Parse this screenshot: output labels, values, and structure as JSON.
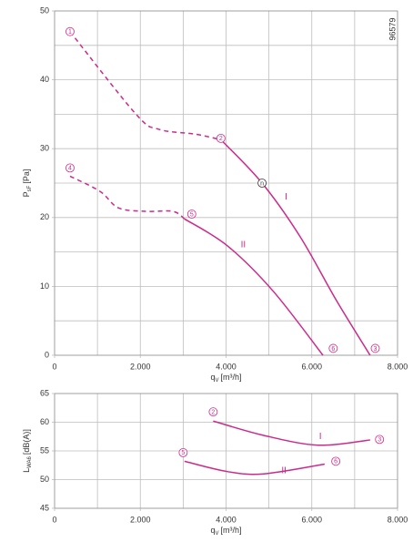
{
  "id_code": "96579",
  "chart_data": [
    {
      "type": "line",
      "x_label": {
        "main": "q",
        "sub": "V",
        "unit": "[m³/h]"
      },
      "y_label": {
        "main": "P",
        "sub": "sF",
        "unit": "[Pa]"
      },
      "xlim": [
        0,
        8000
      ],
      "xticks": [
        0,
        {
          "value": 2000,
          "label": "2.000"
        },
        {
          "value": 4000,
          "label": "4.000"
        },
        {
          "value": 6000,
          "label": "6.000"
        },
        {
          "value": 8000,
          "label": "8.000"
        }
      ],
      "xgrid": [
        1000,
        2000,
        3000,
        4000,
        5000,
        6000,
        7000
      ],
      "ylim": [
        0,
        50
      ],
      "yticks": [
        0,
        10,
        20,
        30,
        40,
        50
      ],
      "ygrid": [
        5,
        10,
        15,
        20,
        25,
        30,
        35,
        40,
        45
      ],
      "series": [
        {
          "color": "#cc2a8a",
          "dashed": true,
          "x": [
            360,
            1900,
            2440,
            3290,
            3880
          ],
          "values": [
            47,
            35,
            32.8,
            32.1,
            31.3
          ]
        },
        {
          "color": "#cc2a8a",
          "dashed": false,
          "x": [
            3880,
            4840,
            5730,
            6580,
            7360
          ],
          "values": [
            31.3,
            25,
            17.2,
            7.9,
            0
          ]
        },
        {
          "color": "#cc2a8a",
          "dashed": true,
          "x": [
            360,
            1060,
            1490,
            2120,
            2760,
            3030
          ],
          "values": [
            26,
            23.8,
            21.4,
            20.9,
            20.9,
            19.8
          ]
        },
        {
          "color": "#cc2a8a",
          "dashed": false,
          "x": [
            3030,
            4030,
            5100,
            6260
          ],
          "values": [
            19.8,
            15.9,
            9.3,
            0
          ]
        }
      ],
      "markers": [
        {
          "label": "1",
          "x": 360,
          "y": 47
        },
        {
          "label": "2",
          "x": 3880,
          "y": 31.5
        },
        {
          "label": "4",
          "x": 360,
          "y": 27.2
        },
        {
          "label": "5",
          "x": 3200,
          "y": 20.5
        },
        {
          "label": "n",
          "x": 4840,
          "y": 25
        },
        {
          "label": "6",
          "x": 6500,
          "y": 1
        },
        {
          "label": "3",
          "x": 7480,
          "y": 1
        }
      ],
      "curve_labels": [
        {
          "label": "I",
          "x": 5400,
          "y": 23
        },
        {
          "label": "II",
          "x": 4400,
          "y": 16
        }
      ]
    },
    {
      "type": "line",
      "x_label": {
        "main": "q",
        "sub": "V",
        "unit": "[m³/h]"
      },
      "y_label": {
        "main": "L",
        "sub": "WA6",
        "unit": "[dB(A)]"
      },
      "xlim": [
        0,
        8000
      ],
      "xticks": [
        0,
        {
          "value": 2000,
          "label": "2.000"
        },
        {
          "value": 4000,
          "label": "4.000"
        },
        {
          "value": 6000,
          "label": "6.000"
        },
        {
          "value": 8000,
          "label": "8.000"
        }
      ],
      "xgrid": [
        1000,
        2000,
        3000,
        4000,
        5000,
        6000,
        7000
      ],
      "ylim": [
        45,
        65
      ],
      "yticks": [
        45,
        50,
        55,
        60,
        65
      ],
      "ygrid": [
        50,
        55,
        60
      ],
      "series": [
        {
          "color": "#cc2a8a",
          "dashed": false,
          "x": [
            3700,
            4880,
            6150,
            7360
          ],
          "values": [
            60.2,
            57.7,
            56,
            56.9
          ]
        },
        {
          "color": "#cc2a8a",
          "dashed": false,
          "x": [
            3030,
            4030,
            4880,
            6300
          ],
          "values": [
            53.2,
            51.4,
            51,
            52.7
          ]
        }
      ],
      "markers": [
        {
          "label": "2",
          "x": 3700,
          "y": 61.8
        },
        {
          "label": "3",
          "x": 7580,
          "y": 57
        },
        {
          "label": "5",
          "x": 3000,
          "y": 54.7
        },
        {
          "label": "6",
          "x": 6560,
          "y": 53.2
        }
      ],
      "curve_labels": [
        {
          "label": "I",
          "x": 6200,
          "y": 57.5
        },
        {
          "label": "II",
          "x": 5350,
          "y": 51.5
        }
      ]
    }
  ]
}
